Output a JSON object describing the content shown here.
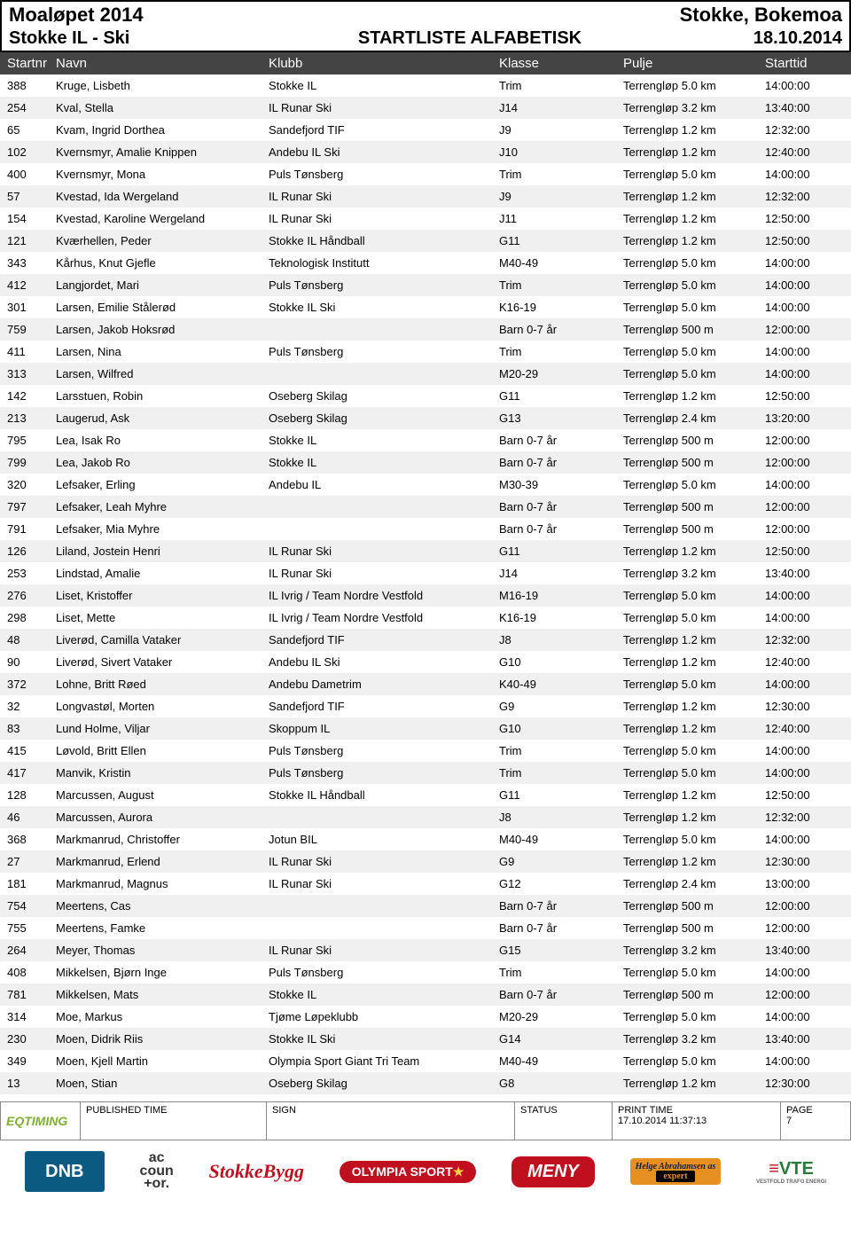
{
  "header": {
    "event": "Moaløpet 2014",
    "location": "Stokke, Bokemoa",
    "club": "Stokke IL - Ski",
    "title": "STARTLISTE ALFABETISK",
    "date": "18.10.2014"
  },
  "columns": {
    "startnr": "Startnr",
    "navn": "Navn",
    "klubb": "Klubb",
    "klasse": "Klasse",
    "pulje": "Pulje",
    "starttid": "Starttid"
  },
  "rows": [
    {
      "nr": "388",
      "navn": "Kruge, Lisbeth",
      "klubb": "Stokke IL",
      "klasse": "Trim",
      "pulje": "Terrengløp 5.0 km",
      "tid": "14:00:00"
    },
    {
      "nr": "254",
      "navn": "Kval, Stella",
      "klubb": "IL Runar Ski",
      "klasse": "J14",
      "pulje": "Terrengløp 3.2 km",
      "tid": "13:40:00"
    },
    {
      "nr": "65",
      "navn": "Kvam, Ingrid Dorthea",
      "klubb": "Sandefjord TIF",
      "klasse": "J9",
      "pulje": "Terrengløp 1.2 km",
      "tid": "12:32:00"
    },
    {
      "nr": "102",
      "navn": "Kvernsmyr, Amalie Knippen",
      "klubb": "Andebu IL Ski",
      "klasse": "J10",
      "pulje": "Terrengløp 1.2 km",
      "tid": "12:40:00"
    },
    {
      "nr": "400",
      "navn": "Kvernsmyr, Mona",
      "klubb": "Puls Tønsberg",
      "klasse": "Trim",
      "pulje": "Terrengløp 5.0 km",
      "tid": "14:00:00"
    },
    {
      "nr": "57",
      "navn": "Kvestad, Ida Wergeland",
      "klubb": "IL Runar Ski",
      "klasse": "J9",
      "pulje": "Terrengløp 1.2 km",
      "tid": "12:32:00"
    },
    {
      "nr": "154",
      "navn": "Kvestad, Karoline Wergeland",
      "klubb": "IL Runar Ski",
      "klasse": "J11",
      "pulje": "Terrengløp 1.2 km",
      "tid": "12:50:00"
    },
    {
      "nr": "121",
      "navn": "Kværhellen, Peder",
      "klubb": "Stokke IL Håndball",
      "klasse": "G11",
      "pulje": "Terrengløp 1.2 km",
      "tid": "12:50:00"
    },
    {
      "nr": "343",
      "navn": "Kårhus, Knut Gjefle",
      "klubb": "Teknologisk Institutt",
      "klasse": "M40-49",
      "pulje": "Terrengløp 5.0 km",
      "tid": "14:00:00"
    },
    {
      "nr": "412",
      "navn": "Langjordet, Mari",
      "klubb": "Puls Tønsberg",
      "klasse": "Trim",
      "pulje": "Terrengløp 5.0 km",
      "tid": "14:00:00"
    },
    {
      "nr": "301",
      "navn": "Larsen, Emilie Stålerød",
      "klubb": "Stokke IL Ski",
      "klasse": "K16-19",
      "pulje": "Terrengløp 5.0 km",
      "tid": "14:00:00"
    },
    {
      "nr": "759",
      "navn": "Larsen, Jakob Hoksrød",
      "klubb": "",
      "klasse": "Barn 0-7 år",
      "pulje": "Terrengløp 500 m",
      "tid": "12:00:00"
    },
    {
      "nr": "411",
      "navn": "Larsen, Nina",
      "klubb": "Puls Tønsberg",
      "klasse": "Trim",
      "pulje": "Terrengløp 5.0 km",
      "tid": "14:00:00"
    },
    {
      "nr": "313",
      "navn": "Larsen, Wilfred",
      "klubb": "",
      "klasse": "M20-29",
      "pulje": "Terrengløp 5.0 km",
      "tid": "14:00:00"
    },
    {
      "nr": "142",
      "navn": "Larsstuen, Robin",
      "klubb": "Oseberg Skilag",
      "klasse": "G11",
      "pulje": "Terrengløp 1.2 km",
      "tid": "12:50:00"
    },
    {
      "nr": "213",
      "navn": "Laugerud, Ask",
      "klubb": "Oseberg Skilag",
      "klasse": "G13",
      "pulje": "Terrengløp 2.4 km",
      "tid": "13:20:00"
    },
    {
      "nr": "795",
      "navn": "Lea, Isak Ro",
      "klubb": "Stokke IL",
      "klasse": "Barn 0-7 år",
      "pulje": "Terrengløp 500 m",
      "tid": "12:00:00"
    },
    {
      "nr": "799",
      "navn": "Lea, Jakob Ro",
      "klubb": "Stokke IL",
      "klasse": "Barn 0-7 år",
      "pulje": "Terrengløp 500 m",
      "tid": "12:00:00"
    },
    {
      "nr": "320",
      "navn": "Lefsaker, Erling",
      "klubb": "Andebu IL",
      "klasse": "M30-39",
      "pulje": "Terrengløp 5.0 km",
      "tid": "14:00:00"
    },
    {
      "nr": "797",
      "navn": "Lefsaker, Leah Myhre",
      "klubb": "",
      "klasse": "Barn 0-7 år",
      "pulje": "Terrengløp 500 m",
      "tid": "12:00:00"
    },
    {
      "nr": "791",
      "navn": "Lefsaker, Mia Myhre",
      "klubb": "",
      "klasse": "Barn 0-7 år",
      "pulje": "Terrengløp 500 m",
      "tid": "12:00:00"
    },
    {
      "nr": "126",
      "navn": "Liland, Jostein Henri",
      "klubb": "IL Runar Ski",
      "klasse": "G11",
      "pulje": "Terrengløp 1.2 km",
      "tid": "12:50:00"
    },
    {
      "nr": "253",
      "navn": "Lindstad, Amalie",
      "klubb": "IL Runar Ski",
      "klasse": "J14",
      "pulje": "Terrengløp 3.2 km",
      "tid": "13:40:00"
    },
    {
      "nr": "276",
      "navn": "Liset, Kristoffer",
      "klubb": "IL Ivrig / Team Nordre Vestfold",
      "klasse": "M16-19",
      "pulje": "Terrengløp 5.0 km",
      "tid": "14:00:00"
    },
    {
      "nr": "298",
      "navn": "Liset, Mette",
      "klubb": "IL Ivrig / Team Nordre Vestfold",
      "klasse": "K16-19",
      "pulje": "Terrengløp 5.0 km",
      "tid": "14:00:00"
    },
    {
      "nr": "48",
      "navn": "Liverød, Camilla Vataker",
      "klubb": "Sandefjord TIF",
      "klasse": "J8",
      "pulje": "Terrengløp 1.2 km",
      "tid": "12:32:00"
    },
    {
      "nr": "90",
      "navn": "Liverød, Sivert Vataker",
      "klubb": "Andebu IL Ski",
      "klasse": "G10",
      "pulje": "Terrengløp 1.2 km",
      "tid": "12:40:00"
    },
    {
      "nr": "372",
      "navn": "Lohne, Britt Røed",
      "klubb": "Andebu Dametrim",
      "klasse": "K40-49",
      "pulje": "Terrengløp 5.0 km",
      "tid": "14:00:00"
    },
    {
      "nr": "32",
      "navn": "Longvastøl, Morten",
      "klubb": "Sandefjord TIF",
      "klasse": "G9",
      "pulje": "Terrengløp 1.2 km",
      "tid": "12:30:00"
    },
    {
      "nr": "83",
      "navn": "Lund Holme, Viljar",
      "klubb": "Skoppum IL",
      "klasse": "G10",
      "pulje": "Terrengløp 1.2 km",
      "tid": "12:40:00"
    },
    {
      "nr": "415",
      "navn": "Løvold, Britt Ellen",
      "klubb": "Puls Tønsberg",
      "klasse": "Trim",
      "pulje": "Terrengløp 5.0 km",
      "tid": "14:00:00"
    },
    {
      "nr": "417",
      "navn": "Manvik, Kristin",
      "klubb": "Puls Tønsberg",
      "klasse": "Trim",
      "pulje": "Terrengløp 5.0 km",
      "tid": "14:00:00"
    },
    {
      "nr": "128",
      "navn": "Marcussen, August",
      "klubb": "Stokke IL Håndball",
      "klasse": "G11",
      "pulje": "Terrengløp 1.2 km",
      "tid": "12:50:00"
    },
    {
      "nr": "46",
      "navn": "Marcussen, Aurora",
      "klubb": "",
      "klasse": "J8",
      "pulje": "Terrengløp 1.2 km",
      "tid": "12:32:00"
    },
    {
      "nr": "368",
      "navn": "Markmanrud, Christoffer",
      "klubb": "Jotun BIL",
      "klasse": "M40-49",
      "pulje": "Terrengløp 5.0 km",
      "tid": "14:00:00"
    },
    {
      "nr": "27",
      "navn": "Markmanrud, Erlend",
      "klubb": "IL Runar Ski",
      "klasse": "G9",
      "pulje": "Terrengløp 1.2 km",
      "tid": "12:30:00"
    },
    {
      "nr": "181",
      "navn": "Markmanrud, Magnus",
      "klubb": "IL Runar Ski",
      "klasse": "G12",
      "pulje": "Terrengløp 2.4 km",
      "tid": "13:00:00"
    },
    {
      "nr": "754",
      "navn": "Meertens, Cas",
      "klubb": "",
      "klasse": "Barn 0-7 år",
      "pulje": "Terrengløp 500 m",
      "tid": "12:00:00"
    },
    {
      "nr": "755",
      "navn": "Meertens, Famke",
      "klubb": "",
      "klasse": "Barn 0-7 år",
      "pulje": "Terrengløp 500 m",
      "tid": "12:00:00"
    },
    {
      "nr": "264",
      "navn": "Meyer, Thomas",
      "klubb": "IL Runar Ski",
      "klasse": "G15",
      "pulje": "Terrengløp 3.2 km",
      "tid": "13:40:00"
    },
    {
      "nr": "408",
      "navn": "Mikkelsen, Bjørn Inge",
      "klubb": "Puls Tønsberg",
      "klasse": "Trim",
      "pulje": "Terrengløp 5.0 km",
      "tid": "14:00:00"
    },
    {
      "nr": "781",
      "navn": "Mikkelsen, Mats",
      "klubb": "Stokke IL",
      "klasse": "Barn 0-7 år",
      "pulje": "Terrengløp 500 m",
      "tid": "12:00:00"
    },
    {
      "nr": "314",
      "navn": "Moe, Markus",
      "klubb": "Tjøme Løpeklubb",
      "klasse": "M20-29",
      "pulje": "Terrengløp 5.0 km",
      "tid": "14:00:00"
    },
    {
      "nr": "230",
      "navn": "Moen, Didrik Riis",
      "klubb": "Stokke IL Ski",
      "klasse": "G14",
      "pulje": "Terrengløp 3.2 km",
      "tid": "13:40:00"
    },
    {
      "nr": "349",
      "navn": "Moen, Kjell Martin",
      "klubb": "Olympia Sport Giant Tri Team",
      "klasse": "M40-49",
      "pulje": "Terrengløp 5.0 km",
      "tid": "14:00:00"
    },
    {
      "nr": "13",
      "navn": "Moen, Stian",
      "klubb": "Oseberg Skilag",
      "klasse": "G8",
      "pulje": "Terrengløp 1.2 km",
      "tid": "12:30:00"
    }
  ],
  "footer": {
    "eq_logo": "EQTIMING",
    "published_time_label": "PUBLISHED TIME",
    "sign_label": "SIGN",
    "status_label": "STATUS",
    "print_time_label": "PRINT TIME",
    "print_time_value": "17.10.2014 11:37:13",
    "page_label": "PAGE",
    "page_value": "7"
  },
  "sponsors": {
    "dnb": "DNB",
    "accountor": "ac\ncoun\n+or.",
    "stokkebygg": "StokkeBygg",
    "olympia": "OLYMPIA SPORT",
    "meny": "MENY",
    "helge": "Helge Abrahamsen as",
    "helge_sub": "expert",
    "vte": "VTE",
    "vte_sub": "VESTFOLD TRAFO ENERGI"
  },
  "colors": {
    "header_bg": "#444444",
    "row_odd": "#f0f0f0",
    "dnb_bg": "#0a5a82",
    "red": "#c01020",
    "orange": "#e59020",
    "green": "#2a7a3a",
    "eq_green": "#7faf2f"
  }
}
